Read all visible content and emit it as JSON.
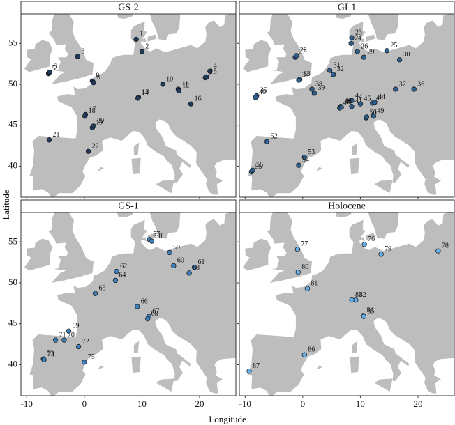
{
  "xlabel": "Longitude",
  "ylabel": "Latitude",
  "xlim": [
    -11,
    26.3
  ],
  "ylim": [
    36.2,
    58.6
  ],
  "xticks": [
    -10,
    0,
    10,
    20
  ],
  "yticks": [
    40,
    45,
    50,
    55
  ],
  "chart_data": [
    {
      "type": "scatter",
      "title": "GS-2",
      "color": "#1f3a5a",
      "labels": [
        "1",
        "2",
        "3",
        "4",
        "5",
        "6",
        "7",
        "8",
        "9",
        "10",
        "11",
        "12",
        "13",
        "14",
        "15",
        "16",
        "17",
        "18",
        "19",
        "20",
        "21",
        "22"
      ],
      "x": [
        9.0,
        10.0,
        -1.15,
        21.8,
        -6.2,
        -6.0,
        21.0,
        1.4,
        1.6,
        13.6,
        16.3,
        16.4,
        9.4,
        9.3,
        21.2,
        18.5,
        0.2,
        0.1,
        1.4,
        1.6,
        -6.1,
        0.7
      ],
      "y": [
        55.5,
        54.0,
        53.4,
        51.6,
        51.3,
        51.5,
        50.8,
        50.4,
        50.2,
        50.0,
        49.4,
        49.2,
        48.4,
        48.3,
        50.9,
        47.6,
        46.3,
        46.1,
        44.7,
        44.9,
        43.2,
        41.8
      ]
    },
    {
      "type": "scatter",
      "title": "GI-1",
      "color": "#2f5f8c",
      "labels": [
        "23",
        "24",
        "25",
        "26",
        "27",
        "28",
        "29",
        "30",
        "31",
        "32",
        "33",
        "34",
        "35",
        "36",
        "37",
        "38",
        "39",
        "40",
        "41",
        "42",
        "43",
        "44",
        "45",
        "46",
        "47",
        "48",
        "49",
        "50",
        "51",
        "52",
        "53",
        "54",
        "55",
        "56"
      ],
      "x": [
        8.5,
        8.4,
        14.6,
        9.5,
        -1.3,
        -1.1,
        10.6,
        16.8,
        4.7,
        5.3,
        -0.5,
        -0.7,
        -8.0,
        19.3,
        16.1,
        1.6,
        2.0,
        -8.2,
        8.5,
        8.5,
        12.1,
        12.5,
        10.0,
        6.6,
        6.4,
        6.7,
        12.3,
        11.0,
        11.1,
        -6.2,
        0.3,
        -0.7,
        -8.9,
        -8.7
      ],
      "y": [
        55.7,
        55.0,
        54.1,
        54.0,
        53.3,
        53.5,
        53.3,
        53.0,
        51.7,
        51.2,
        50.6,
        50.5,
        48.6,
        49.4,
        49.4,
        49.4,
        48.9,
        48.4,
        47.3,
        48.0,
        47.7,
        47.8,
        47.6,
        47.3,
        47.1,
        47.2,
        46.1,
        45.9,
        46.0,
        43.0,
        41.1,
        40.1,
        39.3,
        39.5
      ]
    },
    {
      "type": "scatter",
      "title": "GS-1",
      "color": "#3f7fba",
      "labels": [
        "57",
        "58",
        "59",
        "60",
        "61",
        "62",
        "63",
        "64",
        "65",
        "66",
        "67",
        "68",
        "69",
        "70",
        "71",
        "72",
        "73",
        "74",
        "75"
      ],
      "x": [
        11.3,
        11.7,
        14.8,
        15.5,
        19.1,
        5.6,
        18.2,
        5.4,
        1.9,
        9.2,
        11.2,
        11.0,
        -2.7,
        -3.5,
        -5.0,
        -1.0,
        -7.1,
        -7.0,
        0.0
      ],
      "y": [
        55.3,
        55.1,
        53.7,
        52.1,
        51.9,
        51.4,
        51.2,
        50.3,
        48.7,
        47.1,
        45.9,
        45.6,
        44.1,
        43.0,
        43.0,
        42.2,
        40.7,
        40.6,
        40.3
      ]
    },
    {
      "type": "scatter",
      "title": "Holocene",
      "color": "#66aee8",
      "labels": [
        "76",
        "77",
        "78",
        "79",
        "80",
        "81",
        "82",
        "83",
        "84",
        "85",
        "86",
        "87"
      ],
      "x": [
        10.7,
        -0.9,
        23.5,
        13.6,
        -0.8,
        0.8,
        9.2,
        8.5,
        10.5,
        10.6,
        0.3,
        -9.3
      ],
      "y": [
        54.7,
        54.1,
        53.9,
        53.5,
        51.3,
        49.3,
        47.9,
        47.9,
        46.0,
        45.9,
        41.2,
        39.2
      ]
    }
  ]
}
